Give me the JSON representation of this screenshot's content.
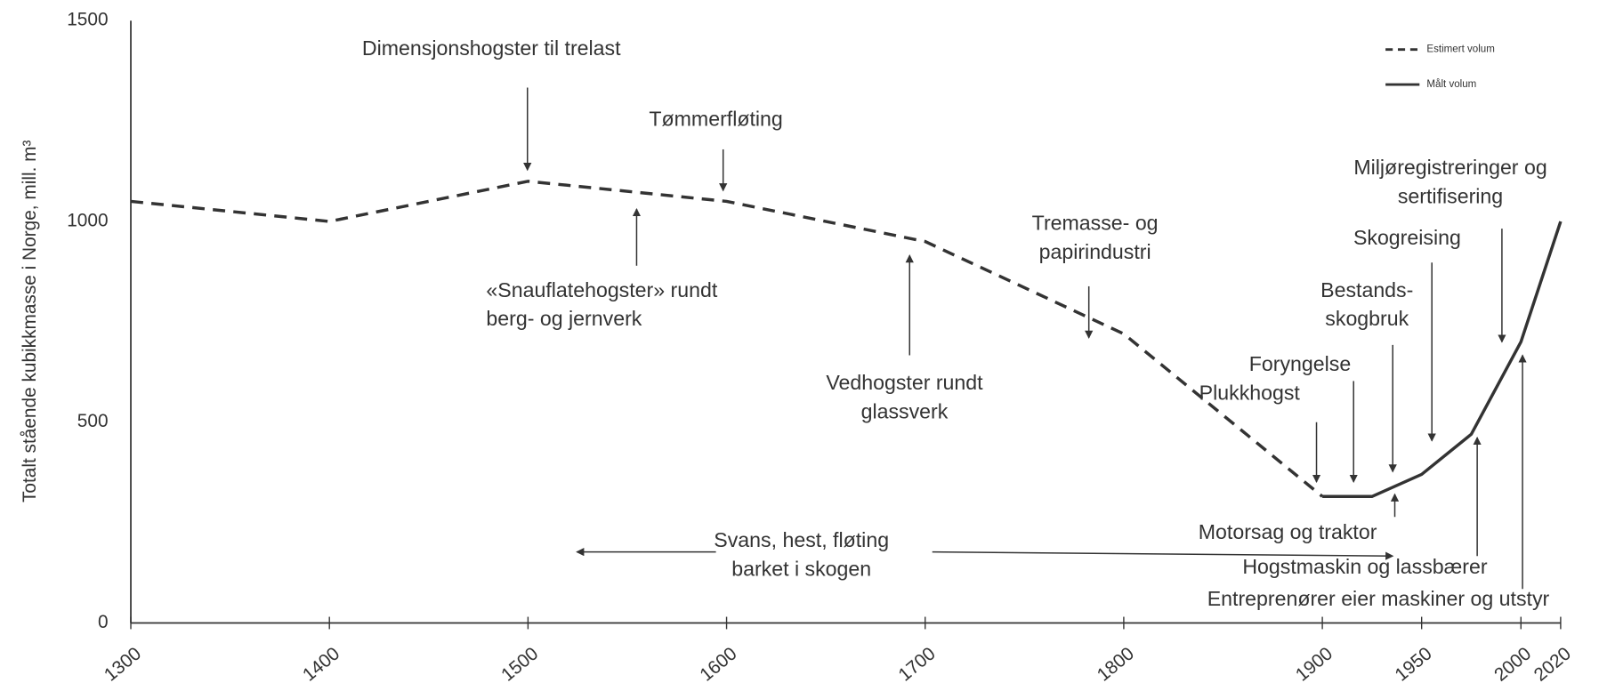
{
  "chart_data": {
    "type": "line",
    "y_label": "Totalt stående kubikkmasse i Norge, mill. m³",
    "xlim": [
      1300,
      2020
    ],
    "xticks": [
      1300,
      1400,
      1500,
      1600,
      1700,
      1800,
      1900,
      1950,
      2000,
      2020
    ],
    "ylim": [
      0,
      1500
    ],
    "yticks": [
      0,
      500,
      1000,
      1500
    ],
    "grid": false,
    "legend": "upper right",
    "series": [
      {
        "name": "Estimert volum",
        "color": "#333333",
        "style": "dashed",
        "x": [
          1300,
          1400,
          1500,
          1600,
          1700,
          1800,
          1900
        ],
        "values": [
          1050,
          1000,
          1100,
          1050,
          950,
          720,
          315
        ]
      },
      {
        "name": "Målt volum",
        "color": "#333333",
        "style": "solid",
        "x": [
          1900,
          1925,
          1950,
          1975,
          2000,
          2020
        ],
        "values": [
          315,
          315,
          370,
          470,
          700,
          1000
        ]
      }
    ],
    "annotations": [
      [
        "Dimensjonshogster til trelast"
      ],
      [
        "Tømmerfløting"
      ],
      [
        "«Snauflatehogster» rundt",
        "berg- og jernverk"
      ],
      [
        "Vedhogster rundt",
        "glassverk"
      ],
      [
        "Tremasse- og",
        "papirindustri"
      ],
      [
        "Miljøregistreringer og",
        "sertifisering"
      ],
      [
        "Skogreising"
      ],
      [
        "Bestands-",
        "skogbruk"
      ],
      [
        "Foryngelse"
      ],
      [
        "Plukkhogst"
      ],
      [
        "Motorsag og traktor"
      ],
      [
        "Svans, hest, fløting",
        "barket i skogen"
      ],
      [
        "Hogstmaskin og lassbærer"
      ],
      [
        "Entreprenører eier maskiner og utstyr"
      ]
    ]
  }
}
